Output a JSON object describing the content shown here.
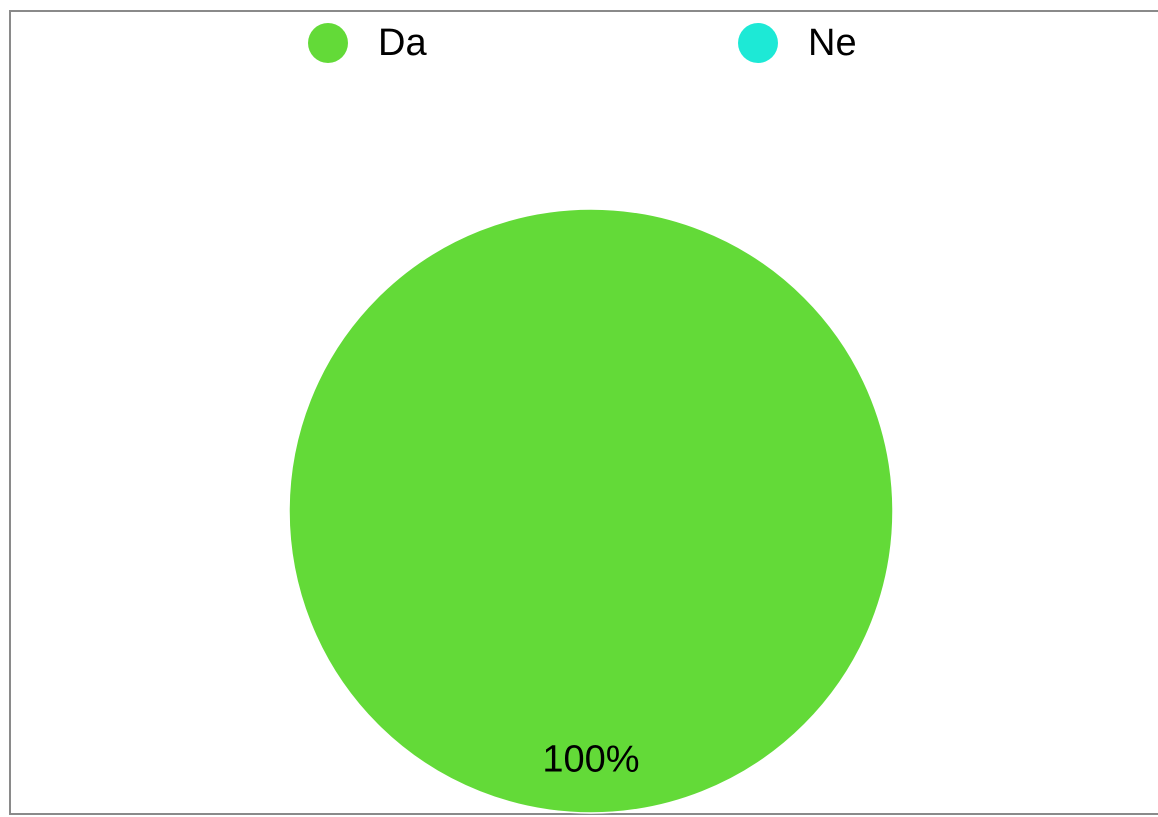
{
  "chart_data": {
    "type": "pie",
    "title": "",
    "categories": [
      "Da",
      "Ne"
    ],
    "values": [
      100,
      0
    ],
    "colors": [
      "#63da38",
      "#1de9d6"
    ],
    "data_labels": [
      "100%",
      ""
    ],
    "legend_position": "top"
  },
  "colors": {
    "border": "#8a8a8a",
    "background": "#ffffff",
    "slice_stroke": "#ffffff"
  }
}
